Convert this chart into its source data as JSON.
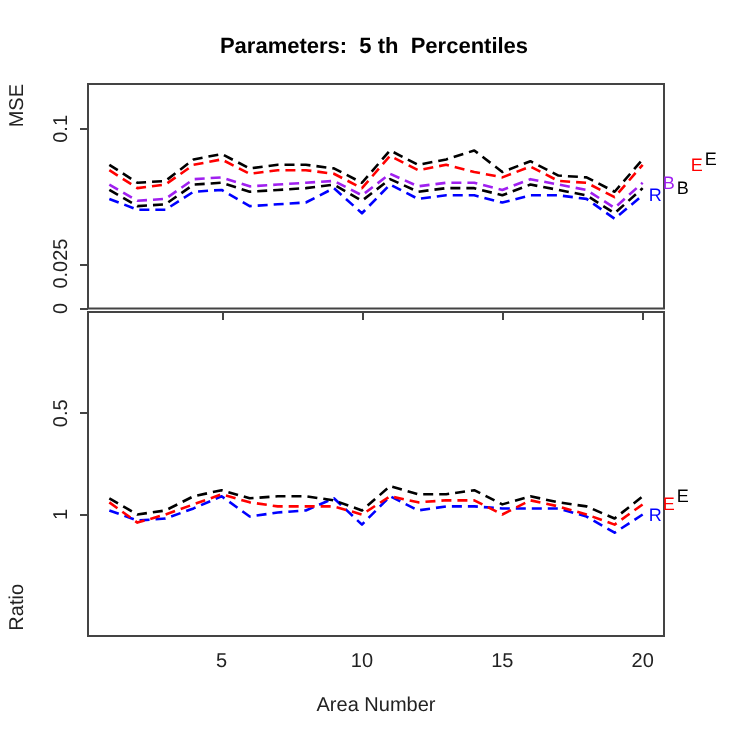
{
  "chart_data": [
    {
      "type": "line",
      "title": "Parameters:  5 th  Percentiles",
      "ylabel": "MSE",
      "x": [
        1,
        2,
        3,
        4,
        5,
        6,
        7,
        8,
        9,
        10,
        11,
        12,
        13,
        14,
        15,
        16,
        17,
        18,
        19,
        20
      ],
      "xlim": [
        0.24,
        20.76
      ],
      "xticks": [
        5,
        10,
        15,
        20
      ],
      "ylim": [
        0,
        0.125
      ],
      "yticks": [
        0,
        0.025,
        0.1
      ],
      "tick_labels": "y",
      "line_style": "dashed",
      "series": [
        {
          "name": "R",
          "color": "#0000ff",
          "values": [
            0.061,
            0.055,
            0.055,
            0.065,
            0.066,
            0.057,
            0.058,
            0.059,
            0.067,
            0.053,
            0.069,
            0.061,
            0.063,
            0.063,
            0.059,
            0.063,
            0.063,
            0.061,
            0.05,
            0.063
          ]
        },
        {
          "name": "B",
          "color": "#a020f0",
          "values": [
            0.069,
            0.06,
            0.061,
            0.072,
            0.073,
            0.068,
            0.069,
            0.07,
            0.071,
            0.063,
            0.075,
            0.068,
            0.07,
            0.07,
            0.066,
            0.072,
            0.069,
            0.066,
            0.056,
            0.07
          ]
        },
        {
          "name": "B",
          "color": "#000000",
          "values": [
            0.066,
            0.057,
            0.058,
            0.069,
            0.07,
            0.065,
            0.066,
            0.067,
            0.069,
            0.06,
            0.072,
            0.065,
            0.067,
            0.067,
            0.063,
            0.069,
            0.066,
            0.063,
            0.053,
            0.067
          ]
        },
        {
          "name": "E",
          "color": "#ff0000",
          "values": [
            0.077,
            0.067,
            0.069,
            0.08,
            0.083,
            0.075,
            0.077,
            0.077,
            0.075,
            0.067,
            0.085,
            0.077,
            0.08,
            0.076,
            0.073,
            0.079,
            0.071,
            0.07,
            0.062,
            0.08
          ]
        },
        {
          "name": "E",
          "color": "#000000",
          "values": [
            0.08,
            0.07,
            0.071,
            0.083,
            0.086,
            0.078,
            0.08,
            0.08,
            0.078,
            0.07,
            0.088,
            0.08,
            0.083,
            0.088,
            0.076,
            0.082,
            0.074,
            0.073,
            0.065,
            0.083
          ]
        }
      ]
    },
    {
      "type": "line",
      "xlabel": "Area Number",
      "ylabel": "Ratio",
      "x": [
        1,
        2,
        3,
        4,
        5,
        6,
        7,
        8,
        9,
        10,
        11,
        12,
        13,
        14,
        15,
        16,
        17,
        18,
        19,
        20
      ],
      "xlim": [
        0.24,
        20.76
      ],
      "xticks": [
        5,
        10,
        15,
        20
      ],
      "ylim": [
        1.6,
        0
      ],
      "yticks": [
        0.5,
        1
      ],
      "line_style": "dashed",
      "series": [
        {
          "name": "R",
          "color": "#0000ff",
          "values": [
            0.98,
            1.03,
            1.02,
            0.97,
            0.91,
            1.01,
            0.99,
            0.98,
            0.92,
            1.05,
            0.91,
            0.98,
            0.96,
            0.96,
            0.97,
            0.97,
            0.97,
            1.01,
            1.09,
            1.0
          ]
        },
        {
          "name": "E",
          "color": "#ff0000",
          "values": [
            0.94,
            1.04,
            1.0,
            0.95,
            0.9,
            0.94,
            0.96,
            0.96,
            0.96,
            1.0,
            0.91,
            0.94,
            0.93,
            0.93,
            1.0,
            0.93,
            0.96,
            1.0,
            1.05,
            0.95
          ]
        },
        {
          "name": "E",
          "color": "#000000",
          "values": [
            0.92,
            1.0,
            0.98,
            0.91,
            0.88,
            0.92,
            0.91,
            0.91,
            0.93,
            0.98,
            0.86,
            0.9,
            0.9,
            0.88,
            0.95,
            0.91,
            0.94,
            0.96,
            1.02,
            0.91
          ]
        }
      ]
    }
  ]
}
